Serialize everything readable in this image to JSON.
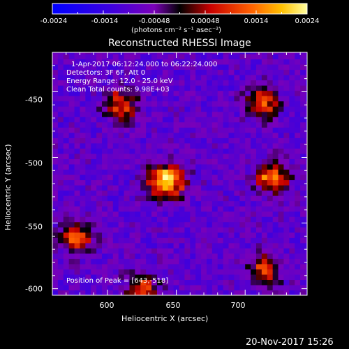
{
  "chart_data": {
    "type": "heatmap",
    "title": "Reconstructed RHESSI Image",
    "xlabel": "Heliocentric X (arcsec)",
    "ylabel": "Heliocentric Y (arcsec)",
    "xlim": [
      560,
      745
    ],
    "ylim": [
      -605,
      -420
    ],
    "x_ticks": [
      600,
      650,
      700
    ],
    "y_ticks": [
      -450,
      -500,
      -550,
      -600
    ],
    "colorbar": {
      "ticks": [
        "-0.0024",
        "-0.0014",
        "-0.00048",
        "0.00048",
        "0.0014",
        "0.0024"
      ],
      "range": [
        -0.0024,
        0.0024
      ],
      "units": "(photons cm⁻² s⁻¹ asec⁻²)"
    },
    "annotations": [
      "1-Apr-2017 06:12:24.000 to 06:22:24.000",
      "Detectors: 3F 6F, Att 0",
      "Energy Range: 12.0 - 25.0 keV",
      "Clean    Total counts: 9.98E+03"
    ],
    "peak_label": "Position of Peak = [643,-518]",
    "peak": [
      643,
      -518
    ],
    "bright_regions": [
      {
        "x": 643,
        "y": -518,
        "value": 0.0024
      },
      {
        "x": 720,
        "y": -515,
        "value": 0.0016
      },
      {
        "x": 610,
        "y": -460,
        "value": 0.0012
      },
      {
        "x": 713,
        "y": -458,
        "value": 0.0011
      },
      {
        "x": 578,
        "y": -560,
        "value": 0.0011
      },
      {
        "x": 715,
        "y": -585,
        "value": 0.001
      },
      {
        "x": 625,
        "y": -600,
        "value": 0.0009
      }
    ]
  },
  "timestamp": "20-Nov-2017 15:26"
}
